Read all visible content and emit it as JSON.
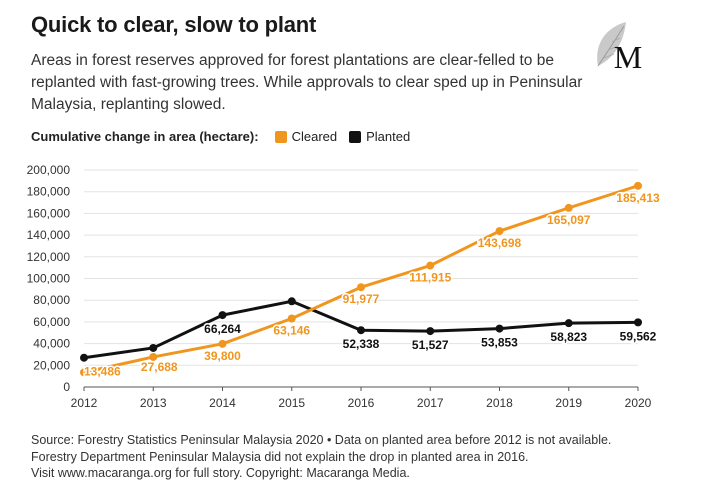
{
  "header": {
    "title": "Quick to clear, slow to plant",
    "subtitle": "Areas in forest reserves approved for forest plantations are clear-felled to be replanted with fast-growing trees. While approvals to clear sped up in Peninsular Malaysia, replanting slowed."
  },
  "logo": {
    "letter": "M",
    "icon": "leaf-icon"
  },
  "legend": {
    "label": "Cumulative change in area (hectare):",
    "items": [
      {
        "name": "Cleared",
        "color": "#f0961e"
      },
      {
        "name": "Planted",
        "color": "#111111"
      }
    ]
  },
  "footer": {
    "line1": "Source: Forestry Statistics Peninsular Malaysia 2020 • Data on planted area before 2012 is not available.",
    "line2": "Forestry Department Peninsular Malaysia did not explain the drop in planted area in 2016.",
    "line3": "Visit www.macaranga.org for full story. Copyright: Macaranga Media."
  },
  "chart_data": {
    "type": "line",
    "title": "",
    "xlabel": "",
    "ylabel": "Cumulative change in area (hectare)",
    "x": [
      2012,
      2013,
      2014,
      2015,
      2016,
      2017,
      2018,
      2019,
      2020
    ],
    "ylim": [
      0,
      200000
    ],
    "yticks": [
      "0",
      "20,000",
      "40,000",
      "60,000",
      "80,000",
      "100,000",
      "120,000",
      "140,000",
      "160,000",
      "180,000",
      "200,000"
    ],
    "xticks": [
      "2012",
      "2013",
      "2014",
      "2015",
      "2016",
      "2017",
      "2018",
      "2019",
      "2020"
    ],
    "grid": true,
    "series": [
      {
        "name": "Cleared",
        "color": "#f0961e",
        "values": [
          13486,
          27688,
          39800,
          63146,
          91977,
          111915,
          143698,
          165097,
          185413
        ],
        "labels": [
          "13,486",
          "27,688",
          "39,800",
          "63,146",
          "91,977",
          "111,915",
          "143,698",
          "165,097",
          "185,413"
        ]
      },
      {
        "name": "Planted",
        "color": "#111111",
        "values": [
          27000,
          36000,
          66264,
          79000,
          52338,
          51527,
          53853,
          58823,
          59562
        ],
        "labels": [
          "",
          "",
          "66,264",
          "",
          "52,338",
          "51,527",
          "53,853",
          "58,823",
          "59,562"
        ]
      }
    ]
  }
}
